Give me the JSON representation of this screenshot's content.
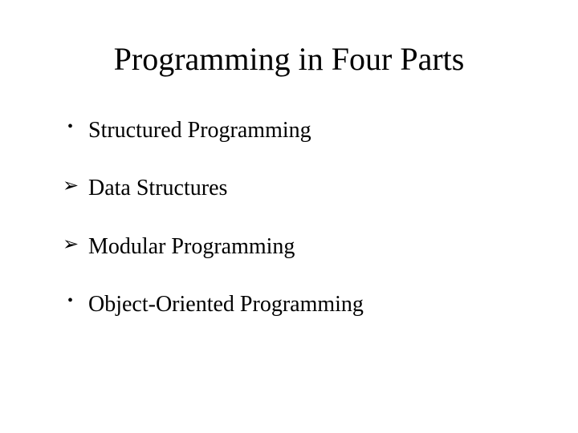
{
  "slide": {
    "title": "Programming in Four Parts",
    "title_fontsize": 40,
    "title_color": "#000000",
    "background_color": "#ffffff",
    "text_color": "#000000",
    "body_fontsize": 28,
    "font_family": "Times New Roman",
    "items": [
      {
        "marker": "•",
        "marker_type": "dot",
        "text": "Structured Programming"
      },
      {
        "marker": "➢",
        "marker_type": "arrow",
        "text": "Data Structures"
      },
      {
        "marker": "➢",
        "marker_type": "arrow",
        "text": "Modular Programming"
      },
      {
        "marker": "•",
        "marker_type": "dot",
        "text": "Object-Oriented Programming"
      }
    ]
  }
}
